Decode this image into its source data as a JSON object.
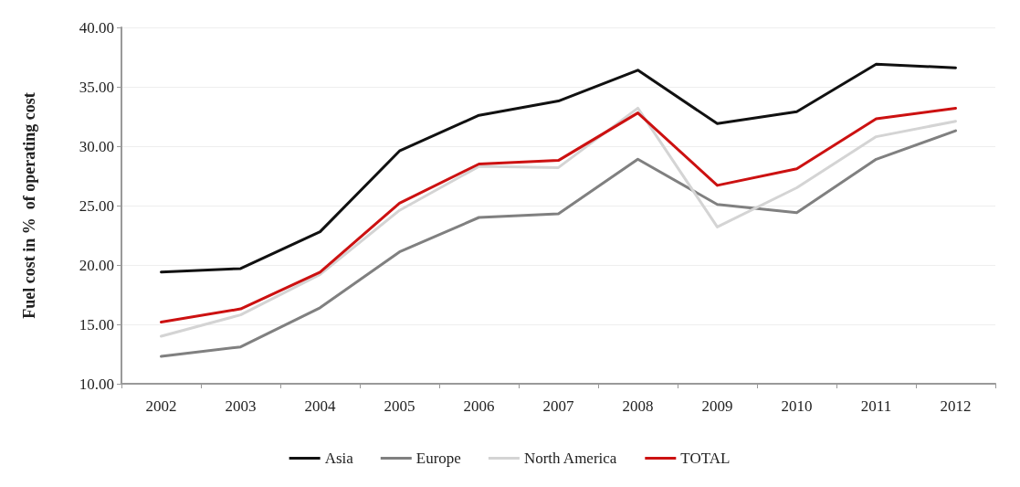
{
  "chart_data": {
    "type": "line",
    "ylabel": "Fuel cost in %  of operating cost",
    "categories": [
      "2002",
      "2003",
      "2004",
      "2005",
      "2006",
      "2007",
      "2008",
      "2009",
      "2010",
      "2011",
      "2012"
    ],
    "series": [
      {
        "name": "Asia",
        "color": "#111111",
        "values": [
          19.4,
          19.7,
          22.8,
          29.6,
          32.6,
          33.8,
          36.4,
          31.9,
          32.9,
          36.9,
          36.6
        ]
      },
      {
        "name": "Europe",
        "color": "#808080",
        "values": [
          12.3,
          13.1,
          16.4,
          21.1,
          24.0,
          24.3,
          28.9,
          25.1,
          24.4,
          28.9,
          31.3
        ]
      },
      {
        "name": "North America",
        "color": "#d4d4d4",
        "values": [
          14.0,
          15.8,
          19.2,
          24.6,
          28.3,
          28.2,
          33.2,
          23.2,
          26.5,
          30.8,
          32.1
        ]
      },
      {
        "name": "TOTAL",
        "color": "#cc1111",
        "values": [
          15.2,
          16.3,
          19.4,
          25.2,
          28.5,
          28.8,
          32.8,
          26.7,
          28.1,
          32.3,
          33.2
        ]
      }
    ],
    "ylim": [
      10,
      40
    ],
    "yticks": [
      {
        "value": 10,
        "label": "10.00"
      },
      {
        "value": 15,
        "label": "15.00"
      },
      {
        "value": 20,
        "label": "20.00"
      },
      {
        "value": 25,
        "label": "25.00"
      },
      {
        "value": 30,
        "label": "30.00"
      },
      {
        "value": 35,
        "label": "35.00"
      },
      {
        "value": 40,
        "label": "40.00"
      }
    ],
    "grid": "y",
    "legend": "bottom",
    "marker": "none",
    "line_style": "solid"
  }
}
